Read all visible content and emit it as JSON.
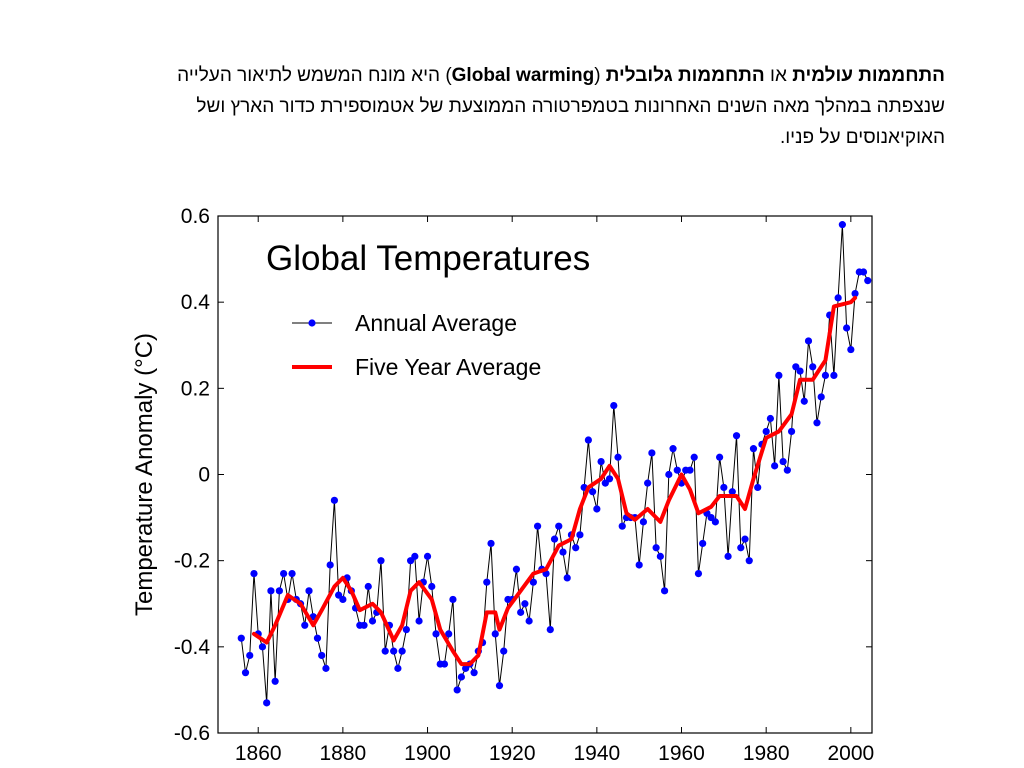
{
  "intro": [
    {
      "text": "התחממות עולמית",
      "bold": true
    },
    {
      "text": " או "
    },
    {
      "text": "התחממות גלובלית",
      "bold": true
    },
    {
      "text": " ("
    },
    {
      "text": "Global warming",
      "bold": true
    },
    {
      "text": ") היא מונח המשמש לתיאור העלייה שנצפתה במהלך מאה השנים האחרונות בטמפרטורה הממוצעת של אטמוספירת כדור הארץ ושל האוקיאנוסים על פניו."
    }
  ],
  "chart_data": {
    "type": "line",
    "title": "Global Temperatures",
    "y_label": "Temperature Anomaly (°C)",
    "xlim": [
      1850.5,
      2005
    ],
    "ylim": [
      -0.6,
      0.6
    ],
    "xticks": [
      1860,
      1880,
      1900,
      1920,
      1940,
      1960,
      1980,
      2000
    ],
    "yticks": [
      -0.6,
      -0.4,
      -0.2,
      0,
      0.2,
      0.4,
      0.6
    ],
    "legend": "upper left",
    "series": [
      {
        "name": "Annual Average",
        "color": "#000000",
        "marker_color": "#0000ff",
        "x": [
          1856,
          1857,
          1858,
          1859,
          1860,
          1861,
          1862,
          1863,
          1864,
          1865,
          1866,
          1867,
          1868,
          1869,
          1870,
          1871,
          1872,
          1873,
          1874,
          1875,
          1876,
          1877,
          1878,
          1879,
          1880,
          1881,
          1882,
          1883,
          1884,
          1885,
          1886,
          1887,
          1888,
          1889,
          1890,
          1891,
          1892,
          1893,
          1894,
          1895,
          1896,
          1897,
          1898,
          1899,
          1900,
          1901,
          1902,
          1903,
          1904,
          1905,
          1906,
          1907,
          1908,
          1909,
          1910,
          1911,
          1912,
          1913,
          1914,
          1915,
          1916,
          1917,
          1918,
          1919,
          1920,
          1921,
          1922,
          1923,
          1924,
          1925,
          1926,
          1927,
          1928,
          1929,
          1930,
          1931,
          1932,
          1933,
          1934,
          1935,
          1936,
          1937,
          1938,
          1939,
          1940,
          1941,
          1942,
          1943,
          1944,
          1945,
          1946,
          1947,
          1948,
          1949,
          1950,
          1951,
          1952,
          1953,
          1954,
          1955,
          1956,
          1957,
          1958,
          1959,
          1960,
          1961,
          1962,
          1963,
          1964,
          1965,
          1966,
          1967,
          1968,
          1969,
          1970,
          1971,
          1972,
          1973,
          1974,
          1975,
          1976,
          1977,
          1978,
          1979,
          1980,
          1981,
          1982,
          1983,
          1984,
          1985,
          1986,
          1987,
          1988,
          1989,
          1990,
          1991,
          1992,
          1993,
          1994,
          1995,
          1996,
          1997,
          1998,
          1999,
          2000,
          2001,
          2002,
          2003,
          2004
        ],
        "values": [
          -0.38,
          -0.46,
          -0.42,
          -0.23,
          -0.37,
          -0.4,
          -0.53,
          -0.27,
          -0.48,
          -0.27,
          -0.23,
          -0.29,
          -0.23,
          -0.29,
          -0.3,
          -0.35,
          -0.27,
          -0.33,
          -0.38,
          -0.42,
          -0.45,
          -0.21,
          -0.06,
          -0.28,
          -0.29,
          -0.24,
          -0.27,
          -0.31,
          -0.35,
          -0.35,
          -0.26,
          -0.34,
          -0.32,
          -0.2,
          -0.41,
          -0.35,
          -0.41,
          -0.45,
          -0.41,
          -0.36,
          -0.2,
          -0.19,
          -0.34,
          -0.25,
          -0.19,
          -0.26,
          -0.37,
          -0.44,
          -0.44,
          -0.37,
          -0.29,
          -0.5,
          -0.47,
          -0.45,
          -0.44,
          -0.46,
          -0.41,
          -0.39,
          -0.25,
          -0.16,
          -0.37,
          -0.49,
          -0.41,
          -0.29,
          -0.29,
          -0.22,
          -0.32,
          -0.3,
          -0.34,
          -0.25,
          -0.12,
          -0.22,
          -0.23,
          -0.36,
          -0.15,
          -0.12,
          -0.18,
          -0.24,
          -0.14,
          -0.17,
          -0.14,
          -0.03,
          0.08,
          -0.04,
          -0.08,
          0.03,
          -0.02,
          -0.01,
          0.16,
          0.04,
          -0.12,
          -0.1,
          -0.1,
          -0.1,
          -0.21,
          -0.11,
          -0.02,
          0.05,
          -0.17,
          -0.19,
          -0.27,
          0.0,
          0.06,
          0.01,
          -0.02,
          0.01,
          0.01,
          0.04,
          -0.23,
          -0.16,
          -0.09,
          -0.1,
          -0.11,
          0.04,
          -0.03,
          -0.19,
          -0.04,
          0.09,
          -0.17,
          -0.15,
          -0.2,
          0.06,
          -0.03,
          0.07,
          0.1,
          0.13,
          0.02,
          0.23,
          0.03,
          0.01,
          0.1,
          0.25,
          0.24,
          0.17,
          0.31,
          0.25,
          0.12,
          0.18,
          0.23,
          0.37,
          0.23,
          0.41,
          0.58,
          0.34,
          0.29,
          0.42,
          0.47,
          0.47,
          0.45
        ]
      },
      {
        "name": "Five Year Average",
        "color": "#ff0000",
        "x": [
          1859,
          1862,
          1864,
          1867,
          1870,
          1873,
          1875,
          1878,
          1880,
          1882,
          1884,
          1887,
          1889,
          1892,
          1894,
          1896,
          1898,
          1901,
          1903,
          1906,
          1908,
          1910,
          1912,
          1914,
          1916,
          1917,
          1919,
          1922,
          1925,
          1928,
          1931,
          1934,
          1936,
          1938,
          1941,
          1943,
          1945,
          1947,
          1949,
          1952,
          1955,
          1957,
          1960,
          1962,
          1964,
          1967,
          1969,
          1973,
          1975,
          1977,
          1980,
          1983,
          1986,
          1988,
          1991,
          1994,
          1996,
          2000,
          2001
        ],
        "values": [
          -0.37,
          -0.39,
          -0.35,
          -0.28,
          -0.3,
          -0.35,
          -0.315,
          -0.26,
          -0.24,
          -0.27,
          -0.315,
          -0.3,
          -0.32,
          -0.385,
          -0.35,
          -0.27,
          -0.25,
          -0.29,
          -0.36,
          -0.41,
          -0.44,
          -0.44,
          -0.42,
          -0.32,
          -0.32,
          -0.36,
          -0.31,
          -0.27,
          -0.23,
          -0.22,
          -0.165,
          -0.15,
          -0.08,
          -0.03,
          -0.01,
          0.02,
          -0.01,
          -0.09,
          -0.105,
          -0.08,
          -0.11,
          -0.06,
          0.0,
          -0.035,
          -0.09,
          -0.075,
          -0.05,
          -0.05,
          -0.08,
          -0.01,
          0.085,
          0.1,
          0.14,
          0.22,
          0.22,
          0.265,
          0.39,
          0.4,
          0.41
        ]
      }
    ]
  }
}
